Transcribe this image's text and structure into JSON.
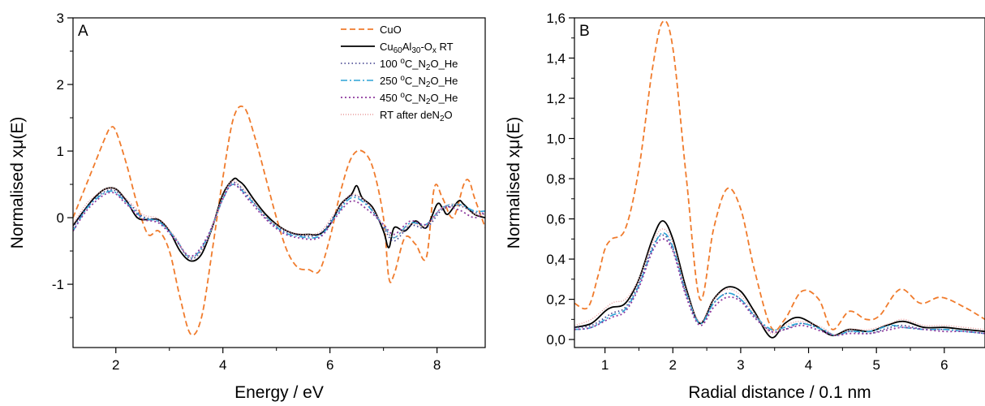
{
  "chart_data": [
    {
      "type": "line",
      "panel": "A",
      "xlabel": "Energy / eV",
      "ylabel": "Normalised xμ(E)",
      "xlim": [
        1.2,
        8.9
      ],
      "ylim": [
        -1.95,
        3.0
      ],
      "xticks": [
        {
          "v": 2,
          "label": "2"
        },
        {
          "v": 4,
          "label": "4"
        },
        {
          "v": 6,
          "label": "6"
        },
        {
          "v": 8,
          "label": "8"
        }
      ],
      "yticks": [
        {
          "v": -1,
          "label": "-1"
        },
        {
          "v": 0,
          "label": "0"
        },
        {
          "v": 1,
          "label": "1"
        },
        {
          "v": 2,
          "label": "2"
        },
        {
          "v": 3,
          "label": "3"
        }
      ],
      "legend_position": "top-right",
      "legend": [
        {
          "id": "cuo",
          "parts": [
            {
              "t": "CuO"
            }
          ]
        },
        {
          "id": "rt",
          "parts": [
            {
              "t": "Cu"
            },
            {
              "t": "60",
              "s": "sub"
            },
            {
              "t": "Al"
            },
            {
              "t": "30",
              "s": "sub"
            },
            {
              "t": "-O"
            },
            {
              "t": "x",
              "s": "sub"
            },
            {
              "t": " RT"
            }
          ]
        },
        {
          "id": "t100",
          "parts": [
            {
              "t": "100 "
            },
            {
              "t": "o",
              "s": "sup"
            },
            {
              "t": "C_N"
            },
            {
              "t": "2",
              "s": "sub"
            },
            {
              "t": "O_He"
            }
          ]
        },
        {
          "id": "t250",
          "parts": [
            {
              "t": "250 "
            },
            {
              "t": "o",
              "s": "sup"
            },
            {
              "t": "C_N"
            },
            {
              "t": "2",
              "s": "sub"
            },
            {
              "t": "O_He"
            }
          ]
        },
        {
          "id": "t450",
          "parts": [
            {
              "t": "450 "
            },
            {
              "t": "o",
              "s": "sup"
            },
            {
              "t": "C_N"
            },
            {
              "t": "2",
              "s": "sub"
            },
            {
              "t": "O_He"
            }
          ]
        },
        {
          "id": "after",
          "parts": [
            {
              "t": "RT after deN"
            },
            {
              "t": "2",
              "s": "sub"
            },
            {
              "t": "O"
            }
          ]
        }
      ],
      "series": [
        {
          "id": "cuo",
          "color": "#f07b2c",
          "dash": "7,4",
          "width": 1.8,
          "x": [
            1.2,
            1.4,
            1.6,
            1.8,
            1.9,
            2.0,
            2.2,
            2.4,
            2.6,
            2.8,
            3.0,
            3.2,
            3.4,
            3.6,
            3.8,
            4.0,
            4.2,
            4.4,
            4.6,
            4.8,
            5.0,
            5.2,
            5.4,
            5.6,
            5.8,
            6.0,
            6.2,
            6.4,
            6.6,
            6.8,
            7.0,
            7.1,
            7.2,
            7.4,
            7.6,
            7.8,
            7.95,
            8.1,
            8.3,
            8.5,
            8.6,
            8.7,
            8.9
          ],
          "y": [
            0.0,
            0.4,
            0.8,
            1.2,
            1.35,
            1.3,
            0.8,
            0.2,
            -0.25,
            -0.2,
            -0.5,
            -1.2,
            -1.75,
            -1.5,
            -0.5,
            0.6,
            1.5,
            1.65,
            1.2,
            0.6,
            0.0,
            -0.5,
            -0.75,
            -0.78,
            -0.8,
            -0.3,
            0.4,
            0.9,
            1.0,
            0.75,
            0.0,
            -0.9,
            -0.85,
            -0.3,
            -0.4,
            -0.6,
            0.45,
            0.3,
            0.0,
            0.5,
            0.55,
            0.3,
            -0.15
          ]
        },
        {
          "id": "rt",
          "color": "#000000",
          "dash": "",
          "width": 1.8,
          "x": [
            1.2,
            1.4,
            1.6,
            1.8,
            2.0,
            2.2,
            2.4,
            2.6,
            2.8,
            3.0,
            3.2,
            3.4,
            3.6,
            3.8,
            4.0,
            4.2,
            4.3,
            4.4,
            4.6,
            4.8,
            5.0,
            5.2,
            5.4,
            5.6,
            5.8,
            6.0,
            6.2,
            6.4,
            6.5,
            6.6,
            6.8,
            7.0,
            7.1,
            7.2,
            7.4,
            7.6,
            7.8,
            8.0,
            8.1,
            8.2,
            8.4,
            8.5,
            8.7,
            8.9
          ],
          "y": [
            -0.12,
            0.1,
            0.3,
            0.43,
            0.43,
            0.25,
            0.0,
            -0.03,
            -0.03,
            -0.2,
            -0.5,
            -0.65,
            -0.55,
            -0.15,
            0.35,
            0.58,
            0.55,
            0.48,
            0.25,
            0.05,
            -0.1,
            -0.2,
            -0.25,
            -0.25,
            -0.25,
            -0.1,
            0.2,
            0.35,
            0.48,
            0.3,
            0.15,
            -0.2,
            -0.45,
            -0.15,
            -0.2,
            -0.05,
            -0.15,
            0.2,
            0.15,
            0.05,
            0.25,
            0.2,
            0.05,
            0.0
          ]
        },
        {
          "id": "t100",
          "color": "#3a3a8a",
          "dash": "1.5,3",
          "width": 1.6,
          "x": [
            1.2,
            1.5,
            1.9,
            2.2,
            2.5,
            2.8,
            3.1,
            3.4,
            3.7,
            4.0,
            4.2,
            4.5,
            4.8,
            5.1,
            5.4,
            5.8,
            6.1,
            6.4,
            6.7,
            7.0,
            7.2,
            7.5,
            7.8,
            8.1,
            8.4,
            8.7,
            8.9
          ],
          "y": [
            -0.15,
            0.2,
            0.42,
            0.25,
            0.02,
            -0.05,
            -0.3,
            -0.62,
            -0.35,
            0.3,
            0.53,
            0.3,
            0.0,
            -0.18,
            -0.26,
            -0.25,
            0.05,
            0.33,
            0.2,
            -0.15,
            -0.35,
            -0.12,
            -0.15,
            0.12,
            0.18,
            0.08,
            0.05
          ]
        },
        {
          "id": "t250",
          "color": "#2ca3d6",
          "dash": "8,3,2,3",
          "width": 1.6,
          "x": [
            1.2,
            1.5,
            1.9,
            2.2,
            2.5,
            2.8,
            3.1,
            3.4,
            3.7,
            4.0,
            4.2,
            4.5,
            4.8,
            5.1,
            5.4,
            5.8,
            6.1,
            6.4,
            6.7,
            7.0,
            7.2,
            7.5,
            7.8,
            8.1,
            8.4,
            8.7,
            8.9
          ],
          "y": [
            -0.2,
            0.18,
            0.4,
            0.22,
            0.0,
            -0.06,
            -0.3,
            -0.6,
            -0.32,
            0.28,
            0.5,
            0.28,
            0.02,
            -0.2,
            -0.28,
            -0.28,
            0.02,
            0.3,
            0.18,
            -0.12,
            -0.3,
            -0.08,
            -0.1,
            0.15,
            0.2,
            0.1,
            0.1
          ]
        },
        {
          "id": "t450",
          "color": "#8e3a9e",
          "dash": "2,3",
          "width": 1.8,
          "x": [
            1.2,
            1.5,
            1.9,
            2.2,
            2.5,
            2.8,
            3.1,
            3.4,
            3.7,
            4.0,
            4.2,
            4.5,
            4.8,
            5.1,
            5.4,
            5.8,
            6.1,
            6.4,
            6.7,
            7.0,
            7.2,
            7.5,
            7.8,
            8.1,
            8.4,
            8.7,
            8.9
          ],
          "y": [
            -0.2,
            0.15,
            0.38,
            0.2,
            -0.02,
            -0.08,
            -0.32,
            -0.58,
            -0.3,
            0.28,
            0.5,
            0.25,
            -0.02,
            -0.22,
            -0.3,
            -0.3,
            0.0,
            0.25,
            0.12,
            -0.1,
            -0.25,
            -0.05,
            -0.1,
            0.15,
            0.12,
            0.0,
            0.1
          ]
        },
        {
          "id": "after",
          "color": "#e89a9a",
          "dash": "1,2",
          "width": 1.4,
          "x": [
            1.2,
            1.5,
            1.9,
            2.2,
            2.5,
            2.8,
            3.1,
            3.4,
            3.7,
            4.0,
            4.2,
            4.5,
            4.8,
            5.1,
            5.4,
            5.8,
            6.1,
            6.4,
            6.7,
            7.0,
            7.2,
            7.5,
            7.8,
            8.1,
            8.4,
            8.7,
            8.9
          ],
          "y": [
            -0.1,
            0.25,
            0.45,
            0.28,
            0.05,
            -0.02,
            -0.28,
            -0.6,
            -0.35,
            0.32,
            0.55,
            0.32,
            0.02,
            -0.16,
            -0.24,
            -0.22,
            0.08,
            0.35,
            0.22,
            -0.12,
            -0.3,
            -0.1,
            -0.12,
            0.15,
            0.2,
            0.05,
            0.05
          ]
        }
      ]
    },
    {
      "type": "line",
      "panel": "B",
      "xlabel": "Radial distance / 0.1 nm",
      "ylabel": "Normalised xμ(E)",
      "xlim": [
        0.55,
        6.6
      ],
      "ylim": [
        -0.04,
        1.6
      ],
      "xticks": [
        {
          "v": 1,
          "label": "1"
        },
        {
          "v": 2,
          "label": "2"
        },
        {
          "v": 3,
          "label": "3"
        },
        {
          "v": 4,
          "label": "4"
        },
        {
          "v": 5,
          "label": "5"
        },
        {
          "v": 6,
          "label": "6"
        }
      ],
      "yticks": [
        {
          "v": 0.0,
          "label": "0,0"
        },
        {
          "v": 0.2,
          "label": "0,2"
        },
        {
          "v": 0.4,
          "label": "0,4"
        },
        {
          "v": 0.6,
          "label": "0,6"
        },
        {
          "v": 0.8,
          "label": "0,8"
        },
        {
          "v": 1.0,
          "label": "1,0"
        },
        {
          "v": 1.2,
          "label": "1,2"
        },
        {
          "v": 1.4,
          "label": "1,4"
        },
        {
          "v": 1.6,
          "label": "1,6"
        }
      ],
      "series": [
        {
          "id": "cuo",
          "color": "#f07b2c",
          "dash": "7,4",
          "width": 1.8,
          "x": [
            0.55,
            0.75,
            0.9,
            1.0,
            1.1,
            1.3,
            1.5,
            1.7,
            1.85,
            2.0,
            2.2,
            2.4,
            2.6,
            2.8,
            3.0,
            3.2,
            3.45,
            3.65,
            3.9,
            4.15,
            4.35,
            4.6,
            4.85,
            5.05,
            5.35,
            5.65,
            5.95,
            6.3,
            6.6
          ],
          "y": [
            0.18,
            0.16,
            0.32,
            0.45,
            0.5,
            0.55,
            0.85,
            1.35,
            1.58,
            1.45,
            0.8,
            0.2,
            0.55,
            0.75,
            0.65,
            0.35,
            0.06,
            0.1,
            0.24,
            0.2,
            0.05,
            0.14,
            0.1,
            0.12,
            0.25,
            0.18,
            0.21,
            0.16,
            0.1
          ]
        },
        {
          "id": "rt",
          "color": "#000000",
          "dash": "",
          "width": 1.8,
          "x": [
            0.55,
            0.8,
            1.0,
            1.1,
            1.3,
            1.5,
            1.7,
            1.85,
            2.0,
            2.2,
            2.4,
            2.6,
            2.8,
            3.0,
            3.2,
            3.45,
            3.65,
            3.85,
            4.1,
            4.35,
            4.6,
            4.9,
            5.15,
            5.4,
            5.7,
            6.0,
            6.3,
            6.6
          ],
          "y": [
            0.06,
            0.08,
            0.14,
            0.16,
            0.18,
            0.3,
            0.5,
            0.59,
            0.5,
            0.25,
            0.08,
            0.2,
            0.26,
            0.24,
            0.14,
            0.01,
            0.08,
            0.11,
            0.07,
            0.02,
            0.05,
            0.04,
            0.07,
            0.09,
            0.06,
            0.06,
            0.05,
            0.04
          ]
        },
        {
          "id": "t100",
          "color": "#3a3a8a",
          "dash": "1.5,3",
          "width": 1.6,
          "x": [
            0.55,
            0.8,
            1.1,
            1.3,
            1.5,
            1.7,
            1.85,
            2.0,
            2.2,
            2.4,
            2.6,
            2.8,
            3.0,
            3.2,
            3.45,
            3.65,
            3.9,
            4.2,
            4.4,
            4.6,
            4.9,
            5.2,
            5.4,
            5.7,
            6.0,
            6.3,
            6.6
          ],
          "y": [
            0.06,
            0.07,
            0.13,
            0.16,
            0.28,
            0.46,
            0.52,
            0.45,
            0.22,
            0.08,
            0.18,
            0.23,
            0.2,
            0.12,
            0.04,
            0.05,
            0.08,
            0.05,
            0.02,
            0.04,
            0.03,
            0.06,
            0.07,
            0.05,
            0.05,
            0.04,
            0.03
          ]
        },
        {
          "id": "t250",
          "color": "#2ca3d6",
          "dash": "8,3,2,3",
          "width": 1.6,
          "x": [
            0.55,
            0.8,
            1.1,
            1.3,
            1.5,
            1.7,
            1.85,
            2.0,
            2.2,
            2.4,
            2.6,
            2.8,
            3.0,
            3.2,
            3.45,
            3.65,
            3.9,
            4.2,
            4.4,
            4.6,
            4.9,
            5.2,
            5.4,
            5.7,
            6.0,
            6.3,
            6.6
          ],
          "y": [
            0.05,
            0.06,
            0.12,
            0.15,
            0.27,
            0.45,
            0.53,
            0.46,
            0.23,
            0.08,
            0.18,
            0.23,
            0.2,
            0.12,
            0.05,
            0.06,
            0.08,
            0.05,
            0.02,
            0.04,
            0.04,
            0.07,
            0.06,
            0.05,
            0.05,
            0.04,
            0.03
          ]
        },
        {
          "id": "t450",
          "color": "#8e3a9e",
          "dash": "2,3",
          "width": 1.8,
          "x": [
            0.55,
            0.8,
            1.1,
            1.3,
            1.5,
            1.7,
            1.85,
            2.0,
            2.2,
            2.4,
            2.6,
            2.8,
            3.0,
            3.2,
            3.45,
            3.65,
            3.9,
            4.2,
            4.4,
            4.6,
            4.9,
            5.2,
            5.4,
            5.7,
            6.0,
            6.3,
            6.6
          ],
          "y": [
            0.05,
            0.06,
            0.11,
            0.14,
            0.26,
            0.44,
            0.5,
            0.44,
            0.21,
            0.07,
            0.16,
            0.21,
            0.19,
            0.11,
            0.04,
            0.05,
            0.07,
            0.04,
            0.02,
            0.03,
            0.03,
            0.05,
            0.06,
            0.05,
            0.04,
            0.04,
            0.03
          ]
        },
        {
          "id": "after",
          "color": "#e89a9a",
          "dash": "1,2",
          "width": 1.4,
          "x": [
            0.55,
            0.8,
            1.1,
            1.3,
            1.5,
            1.7,
            1.85,
            2.0,
            2.2,
            2.4,
            2.6,
            2.8,
            3.0,
            3.2,
            3.45,
            3.65,
            3.9,
            4.2,
            4.4,
            4.6,
            4.9,
            5.2,
            5.4,
            5.7,
            6.0,
            6.3,
            6.6
          ],
          "y": [
            0.07,
            0.1,
            0.18,
            0.2,
            0.3,
            0.48,
            0.55,
            0.48,
            0.24,
            0.09,
            0.2,
            0.25,
            0.22,
            0.13,
            0.03,
            0.07,
            0.09,
            0.06,
            0.02,
            0.05,
            0.05,
            0.08,
            0.1,
            0.07,
            0.07,
            0.06,
            0.05
          ]
        }
      ]
    }
  ]
}
